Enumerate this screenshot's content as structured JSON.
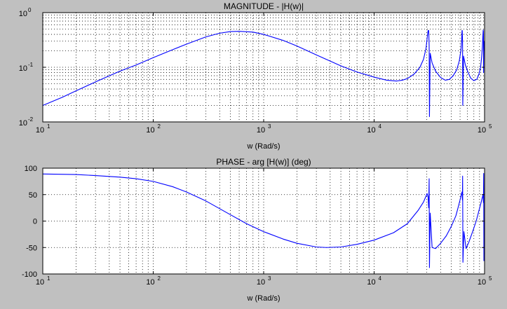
{
  "figure": {
    "background": "#c0c0c0",
    "axes_background": "#ffffff",
    "line_color": "#0000ff"
  },
  "chart_data": [
    {
      "type": "line",
      "title": "MAGNITUDE - |H(w)|",
      "xlabel": "w (Rad/s)",
      "ylabel": "",
      "xscale": "log",
      "yscale": "log",
      "xlim": [
        10,
        100000
      ],
      "ylim": [
        0.01,
        1
      ],
      "grid": true,
      "x_ticks": [
        {
          "base": "10",
          "exp": "1"
        },
        {
          "base": "10",
          "exp": "2"
        },
        {
          "base": "10",
          "exp": "3"
        },
        {
          "base": "10",
          "exp": "4"
        },
        {
          "base": "10",
          "exp": "5"
        }
      ],
      "y_ticks": [
        {
          "base": "10",
          "exp": "-2",
          "value": 0.01
        },
        {
          "base": "10",
          "exp": "-1",
          "value": 0.1
        },
        {
          "base": "10",
          "exp": "0",
          "value": 1
        }
      ],
      "series": [
        {
          "color": "#0000ff",
          "x": [
            10,
            15,
            20,
            30,
            50,
            70,
            100,
            150,
            200,
            300,
            400,
            500,
            600,
            800,
            1000,
            1500,
            2000,
            3000,
            5000,
            7000,
            10000,
            13000,
            16000,
            18000,
            20000,
            23000,
            26000,
            28000,
            29500,
            30400,
            30800,
            31200,
            31500,
            31700,
            32200,
            33500,
            36000,
            40000,
            44000,
            48000,
            52000,
            56000,
            59000,
            61000,
            62000,
            62500,
            62800,
            63200,
            63500,
            64500,
            67000,
            71000,
            75000,
            80000,
            85000,
            89000,
            92000,
            94000,
            95500,
            96500,
            97200,
            97600,
            98000,
            98500,
            100000
          ],
          "y": [
            0.02,
            0.0282,
            0.037,
            0.054,
            0.085,
            0.11,
            0.15,
            0.21,
            0.265,
            0.36,
            0.42,
            0.45,
            0.455,
            0.44,
            0.4,
            0.31,
            0.245,
            0.168,
            0.106,
            0.082,
            0.066,
            0.058,
            0.056,
            0.058,
            0.062,
            0.075,
            0.1,
            0.14,
            0.22,
            0.38,
            0.47,
            0.47,
            0.25,
            0.0125,
            0.18,
            0.12,
            0.085,
            0.065,
            0.058,
            0.06,
            0.07,
            0.09,
            0.13,
            0.2,
            0.3,
            0.47,
            0.47,
            0.3,
            0.02,
            0.16,
            0.11,
            0.08,
            0.063,
            0.057,
            0.06,
            0.075,
            0.1,
            0.15,
            0.23,
            0.37,
            0.48,
            0.45,
            0.08,
            0.3,
            0.2
          ]
        }
      ]
    },
    {
      "type": "line",
      "title": "PHASE - arg [H(w)] (deg)",
      "xlabel": "w (Rad/s)",
      "ylabel": "",
      "xscale": "log",
      "yscale": "linear",
      "xlim": [
        10,
        100000
      ],
      "ylim": [
        -100,
        100
      ],
      "grid": true,
      "x_ticks": [
        {
          "base": "10",
          "exp": "1"
        },
        {
          "base": "10",
          "exp": "2"
        },
        {
          "base": "10",
          "exp": "3"
        },
        {
          "base": "10",
          "exp": "4"
        },
        {
          "base": "10",
          "exp": "5"
        }
      ],
      "y_ticks": [
        {
          "label": "100",
          "value": 100
        },
        {
          "label": "50",
          "value": 50
        },
        {
          "label": "0",
          "value": 0
        },
        {
          "label": "-50",
          "value": -50
        },
        {
          "label": "-100",
          "value": -100
        }
      ],
      "series": [
        {
          "color": "#0000ff",
          "x": [
            10,
            20,
            30,
            50,
            70,
            100,
            150,
            200,
            300,
            500,
            700,
            1000,
            1500,
            2000,
            3000,
            3700,
            5000,
            7000,
            10000,
            15000,
            20000,
            25000,
            28000,
            29500,
            30200,
            30800,
            31200,
            31500,
            31700,
            32200,
            33500,
            36000,
            40000,
            45000,
            50000,
            55000,
            58000,
            60000,
            61500,
            62500,
            63000,
            63300,
            63700,
            65000,
            68000,
            72000,
            78000,
            84000,
            89000,
            93000,
            95500,
            97000,
            97600,
            98200,
            98600,
            99000,
            99400,
            100000
          ],
          "y": [
            89,
            88,
            86,
            83,
            80,
            75,
            65,
            55,
            38,
            12,
            -5,
            -20,
            -34,
            -42,
            -49,
            -50,
            -49,
            -44,
            -36,
            -22,
            -5,
            20,
            36,
            47,
            52,
            45,
            25,
            80,
            -88,
            15,
            -50,
            -52,
            -42,
            -28,
            -10,
            10,
            28,
            40,
            50,
            55,
            40,
            85,
            -78,
            -20,
            -52,
            -40,
            -20,
            0,
            20,
            35,
            45,
            50,
            35,
            90,
            -75,
            0,
            -30,
            -62
          ]
        }
      ]
    }
  ]
}
